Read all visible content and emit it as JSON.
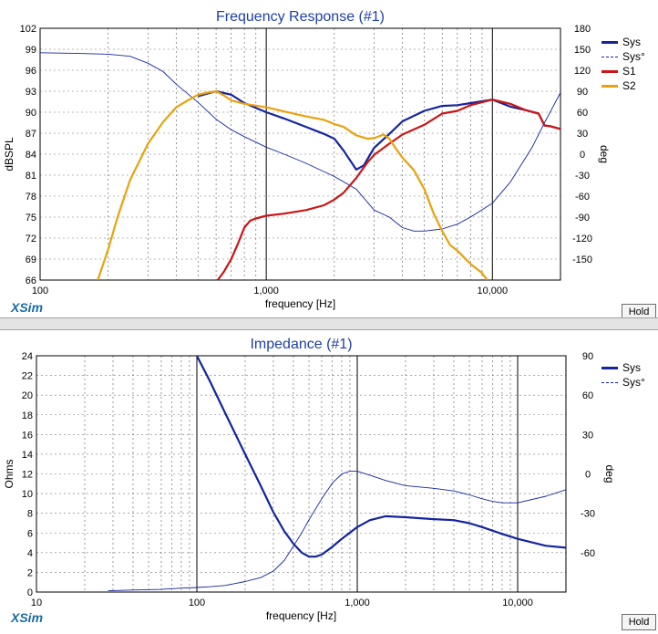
{
  "app": {
    "brand": "XSim",
    "hold_label": "Hold"
  },
  "colors": {
    "title": "#1f3fa8",
    "Sys": "#1424a0",
    "S1": "#cc1515",
    "S2": "#e9a20c",
    "grid": "#000000"
  },
  "chart_data": [
    {
      "id": "frequency-response",
      "type": "line",
      "title": "Frequency Response (#1)",
      "xlabel": "frequency [Hz]",
      "ylabel": "dBSPL",
      "y2label": "deg",
      "xscale": "log",
      "xlim": [
        100,
        20000
      ],
      "ylim": [
        66,
        102
      ],
      "y2lim": [
        -180,
        180
      ],
      "x_tick_labels": [
        {
          "value": 100,
          "label": "100"
        },
        {
          "value": 1000,
          "label": "1,000"
        },
        {
          "value": 10000,
          "label": "10,000"
        }
      ],
      "y_ticks": [
        66,
        69,
        72,
        75,
        78,
        81,
        84,
        87,
        90,
        93,
        96,
        99,
        102
      ],
      "y2_ticks": [
        -150,
        -120,
        -90,
        -60,
        -30,
        0,
        30,
        60,
        90,
        120,
        150,
        180
      ],
      "grid": true,
      "legend_position": "right",
      "series": [
        {
          "name": "Sys",
          "axis": "y",
          "style": "thick",
          "x": [
            500,
            600,
            700,
            800,
            1000,
            1200,
            1500,
            1800,
            2000,
            2200,
            2500,
            2700,
            3000,
            3500,
            4000,
            5000,
            6000,
            7000,
            8000,
            10000,
            12000,
            14000,
            16000,
            17000,
            18000,
            20000
          ],
          "y": [
            92.3,
            93.0,
            92.5,
            91.3,
            90.0,
            89.1,
            87.9,
            86.9,
            86.2,
            84.5,
            81.8,
            82.4,
            84.9,
            86.9,
            88.7,
            90.2,
            90.9,
            91.0,
            91.3,
            91.8,
            90.8,
            90.3,
            89.8,
            88.1,
            88.0,
            87.6
          ]
        },
        {
          "name": "Sys°",
          "axis": "y2",
          "style": "dotted",
          "x": [
            100,
            150,
            200,
            250,
            300,
            350,
            400,
            500,
            600,
            700,
            800,
            1000,
            1200,
            1500,
            2000,
            2500,
            3000,
            3500,
            4000,
            4500,
            5000,
            6000,
            7000,
            8000,
            10000,
            12000,
            15000,
            17000,
            20000
          ],
          "y": [
            145,
            144,
            143,
            140,
            130,
            118,
            100,
            74,
            50,
            35,
            25,
            10,
            0,
            -13,
            -32,
            -50,
            -80,
            -90,
            -105,
            -110,
            -110,
            -107,
            -100,
            -90,
            -70,
            -40,
            10,
            45,
            88
          ]
        },
        {
          "name": "S1",
          "axis": "y",
          "style": "thick",
          "x": [
            610,
            650,
            700,
            750,
            800,
            850,
            900,
            1000,
            1200,
            1500,
            1800,
            2000,
            2200,
            2500,
            2800,
            3000,
            3500,
            4000,
            5000,
            6000,
            7000,
            8000,
            10000,
            12000,
            14000,
            16000,
            17000,
            18000,
            20000
          ],
          "y": [
            66.0,
            67.2,
            69.0,
            71.2,
            73.5,
            74.5,
            74.8,
            75.2,
            75.5,
            76.0,
            76.7,
            77.5,
            78.5,
            80.6,
            82.8,
            83.9,
            85.5,
            86.8,
            88.2,
            89.8,
            90.2,
            91.0,
            91.8,
            91.2,
            90.3,
            89.8,
            88.1,
            88.0,
            87.6
          ]
        },
        {
          "name": "S2",
          "axis": "y",
          "style": "thick",
          "x": [
            180,
            200,
            220,
            250,
            300,
            350,
            400,
            450,
            500,
            550,
            600,
            650,
            700,
            800,
            1000,
            1200,
            1500,
            1800,
            2000,
            2200,
            2500,
            2800,
            3000,
            3300,
            3500,
            3800,
            4000,
            4500,
            5000,
            5500,
            6000,
            6500,
            7000,
            8000,
            9000,
            9500
          ],
          "y": [
            66.0,
            70.4,
            75.0,
            80.3,
            85.5,
            88.6,
            90.7,
            91.7,
            92.5,
            92.8,
            93.0,
            92.4,
            91.7,
            91.2,
            90.7,
            90.1,
            89.4,
            88.9,
            88.3,
            87.9,
            86.7,
            86.2,
            86.3,
            86.8,
            86.2,
            84.5,
            83.5,
            81.7,
            79.0,
            75.5,
            73.0,
            71.0,
            70.2,
            68.3,
            67.0,
            66.0
          ]
        }
      ]
    },
    {
      "id": "impedance",
      "type": "line",
      "title": "Impedance (#1)",
      "xlabel": "frequency [Hz]",
      "ylabel": "Ohms",
      "y2label": "deg",
      "xscale": "log",
      "xlim": [
        10,
        20000
      ],
      "ylim": [
        0,
        24
      ],
      "y2lim": [
        -90,
        90
      ],
      "x_tick_labels": [
        {
          "value": 10,
          "label": "10"
        },
        {
          "value": 100,
          "label": "100"
        },
        {
          "value": 1000,
          "label": "1,000"
        },
        {
          "value": 10000,
          "label": "10,000"
        }
      ],
      "y_ticks": [
        0,
        2,
        4,
        6,
        8,
        10,
        12,
        14,
        16,
        18,
        20,
        22,
        24
      ],
      "y2_ticks": [
        -60,
        -30,
        0,
        30,
        60,
        90
      ],
      "grid": true,
      "legend_position": "right",
      "series": [
        {
          "name": "Sys",
          "axis": "y",
          "style": "thick",
          "x": [
            100,
            120,
            150,
            200,
            250,
            300,
            350,
            400,
            450,
            500,
            550,
            600,
            700,
            800,
            1000,
            1200,
            1500,
            2000,
            3000,
            4000,
            5000,
            6000,
            8000,
            10000,
            15000,
            20000
          ],
          "y": [
            24.0,
            21.5,
            18.2,
            14.0,
            10.8,
            8.1,
            6.2,
            4.9,
            4.0,
            3.6,
            3.6,
            3.8,
            4.6,
            5.4,
            6.6,
            7.3,
            7.7,
            7.6,
            7.4,
            7.3,
            7.0,
            6.6,
            5.9,
            5.4,
            4.7,
            4.5
          ]
        },
        {
          "name": "Sys°",
          "axis": "y2",
          "style": "dotted",
          "x": [
            28,
            40,
            60,
            80,
            100,
            120,
            150,
            200,
            250,
            300,
            350,
            400,
            450,
            500,
            600,
            700,
            800,
            900,
            1000,
            1200,
            1500,
            2000,
            3000,
            4000,
            5000,
            6000,
            7000,
            8000,
            10000,
            15000,
            20000
          ],
          "y": [
            -89,
            -88.5,
            -88,
            -87,
            -86.5,
            -86,
            -85,
            -82,
            -79,
            -74,
            -66,
            -55,
            -45,
            -35,
            -19,
            -7,
            0,
            2,
            2,
            -1,
            -5,
            -9,
            -11,
            -13,
            -16,
            -19,
            -21,
            -22,
            -22,
            -17,
            -12
          ]
        }
      ]
    }
  ]
}
